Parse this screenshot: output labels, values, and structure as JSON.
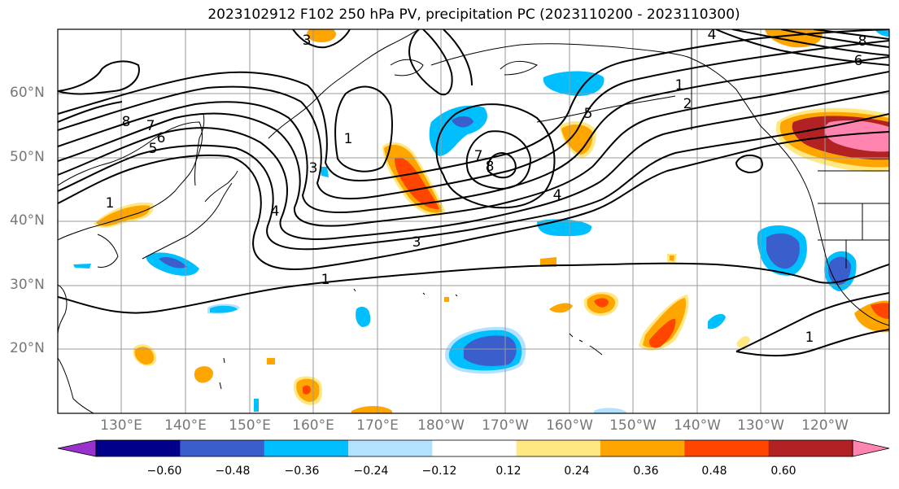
{
  "title": "2023102912 F102 250 hPa PV, precipitation PC (2023110200 - 2023110300)",
  "lat_labels": [
    "60°N",
    "50°N",
    "40°N",
    "30°N",
    "20°N"
  ],
  "lon_labels": [
    "130°E",
    "140°E",
    "150°E",
    "160°E",
    "170°E",
    "180°W",
    "170°W",
    "160°W",
    "150°W",
    "140°W",
    "130°W",
    "120°W"
  ],
  "contour_labels": [
    "1",
    "2",
    "3",
    "4",
    "5",
    "6",
    "7",
    "8"
  ],
  "colorbar": {
    "colors": [
      "#9932cc",
      "#00008b",
      "#3a5fcd",
      "#00bfff",
      "#b2e2ff",
      "#ffffff",
      "#ffe882",
      "#ffa500",
      "#ff4500",
      "#b22222",
      "#ff85b0"
    ],
    "tick_labels": [
      "−0.60",
      "−0.48",
      "−0.36",
      "−0.24",
      "−0.12",
      "0.12",
      "0.24",
      "0.36",
      "0.48",
      "0.60"
    ]
  }
}
